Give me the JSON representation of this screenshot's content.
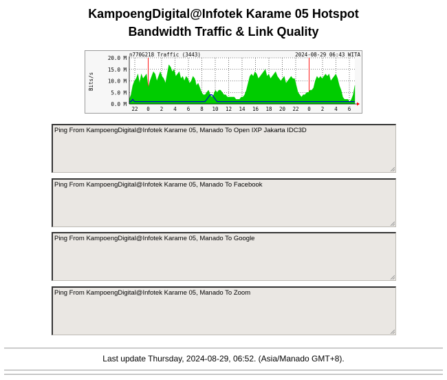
{
  "header": {
    "title_line1": "KampoengDigital@Infotek Karame 05 Hotspot",
    "title_line2": "Bandwidth Traffic & Link Quality"
  },
  "graph": {
    "header_left": "n770G218 Traffic (3443)",
    "header_right": "2024-08-29 06:43 WITA",
    "ylabel": "Bits/s",
    "colors": {
      "in": "#00cc00",
      "out": "#0000cc",
      "grid": "#cc0000",
      "plot_bg": "#ffffff"
    }
  },
  "chart_data": {
    "type": "area",
    "title": "n770G218 Traffic (3443)",
    "timestamp": "2024-08-29 06:43 WITA",
    "ylabel": "Bits/s",
    "y_ticks": [
      "0.0 M",
      "5.0 M",
      "10.0 M",
      "15.0 M",
      "20.0 M"
    ],
    "ylim": [
      0,
      20
    ],
    "x_ticks": [
      "22",
      "0",
      "2",
      "4",
      "6",
      "8",
      "10",
      "12",
      "14",
      "16",
      "18",
      "20",
      "22",
      "0",
      "2",
      "4",
      "6"
    ],
    "series": [
      {
        "values": [
          2,
          4,
          8,
          10,
          11,
          13,
          9,
          13,
          11,
          12,
          13,
          7,
          10,
          12,
          14,
          13,
          10,
          12,
          14,
          12,
          11,
          9,
          13,
          17,
          16,
          14,
          15,
          12,
          13,
          14,
          11,
          12,
          10,
          12,
          11,
          9,
          10,
          12,
          11,
          8,
          9,
          7,
          5,
          4,
          4,
          5,
          6,
          4,
          3,
          4,
          6,
          5,
          6,
          6,
          5,
          4,
          4,
          3,
          3,
          3,
          3,
          3,
          2,
          2,
          2,
          3,
          3,
          4,
          6,
          9,
          12,
          13,
          12,
          14,
          13,
          11,
          12,
          13,
          14,
          15,
          12,
          13,
          11,
          12,
          13,
          14,
          12,
          11,
          10,
          11,
          12,
          9,
          10,
          11,
          12,
          11,
          11,
          8,
          5,
          4,
          3,
          4,
          4,
          5,
          5,
          6,
          6,
          7,
          10,
          12,
          11,
          12,
          11,
          12,
          13,
          12,
          13,
          10,
          11,
          12,
          13,
          11,
          8,
          6,
          3,
          2,
          2,
          2,
          1,
          2,
          4,
          8
        ]
      },
      {
        "values": [
          1,
          1,
          2,
          1,
          1,
          1,
          1,
          1,
          1,
          1,
          1,
          1,
          1,
          1,
          1,
          1,
          1,
          1,
          1,
          1,
          1,
          1,
          1,
          1,
          1,
          1,
          1,
          1,
          1,
          1,
          1,
          1,
          1,
          1,
          1,
          1,
          1,
          1,
          1,
          1,
          1,
          1,
          1,
          1,
          1,
          2,
          3,
          4,
          4,
          3,
          2,
          1,
          1,
          1,
          1,
          1,
          1,
          1,
          1,
          1,
          1,
          1,
          1,
          1,
          1,
          1,
          1,
          1,
          1,
          1,
          1,
          1,
          1,
          1,
          1,
          1,
          1,
          1,
          1,
          1,
          1,
          1,
          1,
          1,
          1,
          1,
          1,
          1,
          1,
          1,
          1,
          1,
          1,
          1,
          1,
          1,
          1,
          1,
          1,
          1,
          1,
          1,
          1,
          1,
          1,
          1,
          1,
          1,
          1,
          1,
          1,
          1,
          1,
          1,
          1,
          1,
          1,
          1,
          1,
          1,
          1,
          1,
          1,
          1,
          1,
          1,
          1,
          1,
          1,
          1,
          1,
          1
        ]
      }
    ]
  },
  "pings": [
    {
      "label": "Ping From KampoengDigital@Infotek Karame 05, Manado To Open IXP Jakarta IDC3D"
    },
    {
      "label": "Ping From KampoengDigital@Infotek Karame 05, Manado To Facebook"
    },
    {
      "label": "Ping From KampoengDigital@Infotek Karame 05, Manado To Google"
    },
    {
      "label": "Ping From KampoengDigital@Infotek Karame 05, Manado To Zoom"
    }
  ],
  "footer": {
    "last_update": "Last update Thursday, 2024-08-29, 06:52. (Asia/Manado GMT+8)."
  }
}
